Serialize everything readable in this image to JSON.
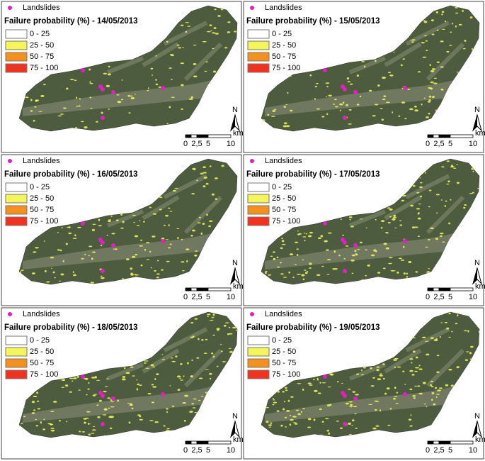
{
  "landslides_label": "Landslides",
  "panels": [
    {
      "title": "Failure probability (%) - 14/05/2013"
    },
    {
      "title": "Failure probability (%) - 15/05/2013"
    },
    {
      "title": "Failure probability (%) - 16/05/2013"
    },
    {
      "title": "Failure probability (%) - 17/05/2013"
    },
    {
      "title": "Failure probability (%) - 18/05/2013"
    },
    {
      "title": "Failure probability (%) - 19/05/2013"
    }
  ],
  "classes": [
    {
      "label": "0 - 25",
      "color": "#ffffff"
    },
    {
      "label": "25 - 50",
      "color": "#f5f55a"
    },
    {
      "label": "50 - 75",
      "color": "#f5901e"
    },
    {
      "label": "75 - 100",
      "color": "#f0321e"
    }
  ],
  "north": "N",
  "scale": {
    "unit": "km",
    "labels": [
      "0",
      "2,5",
      "5",
      "10"
    ]
  }
}
